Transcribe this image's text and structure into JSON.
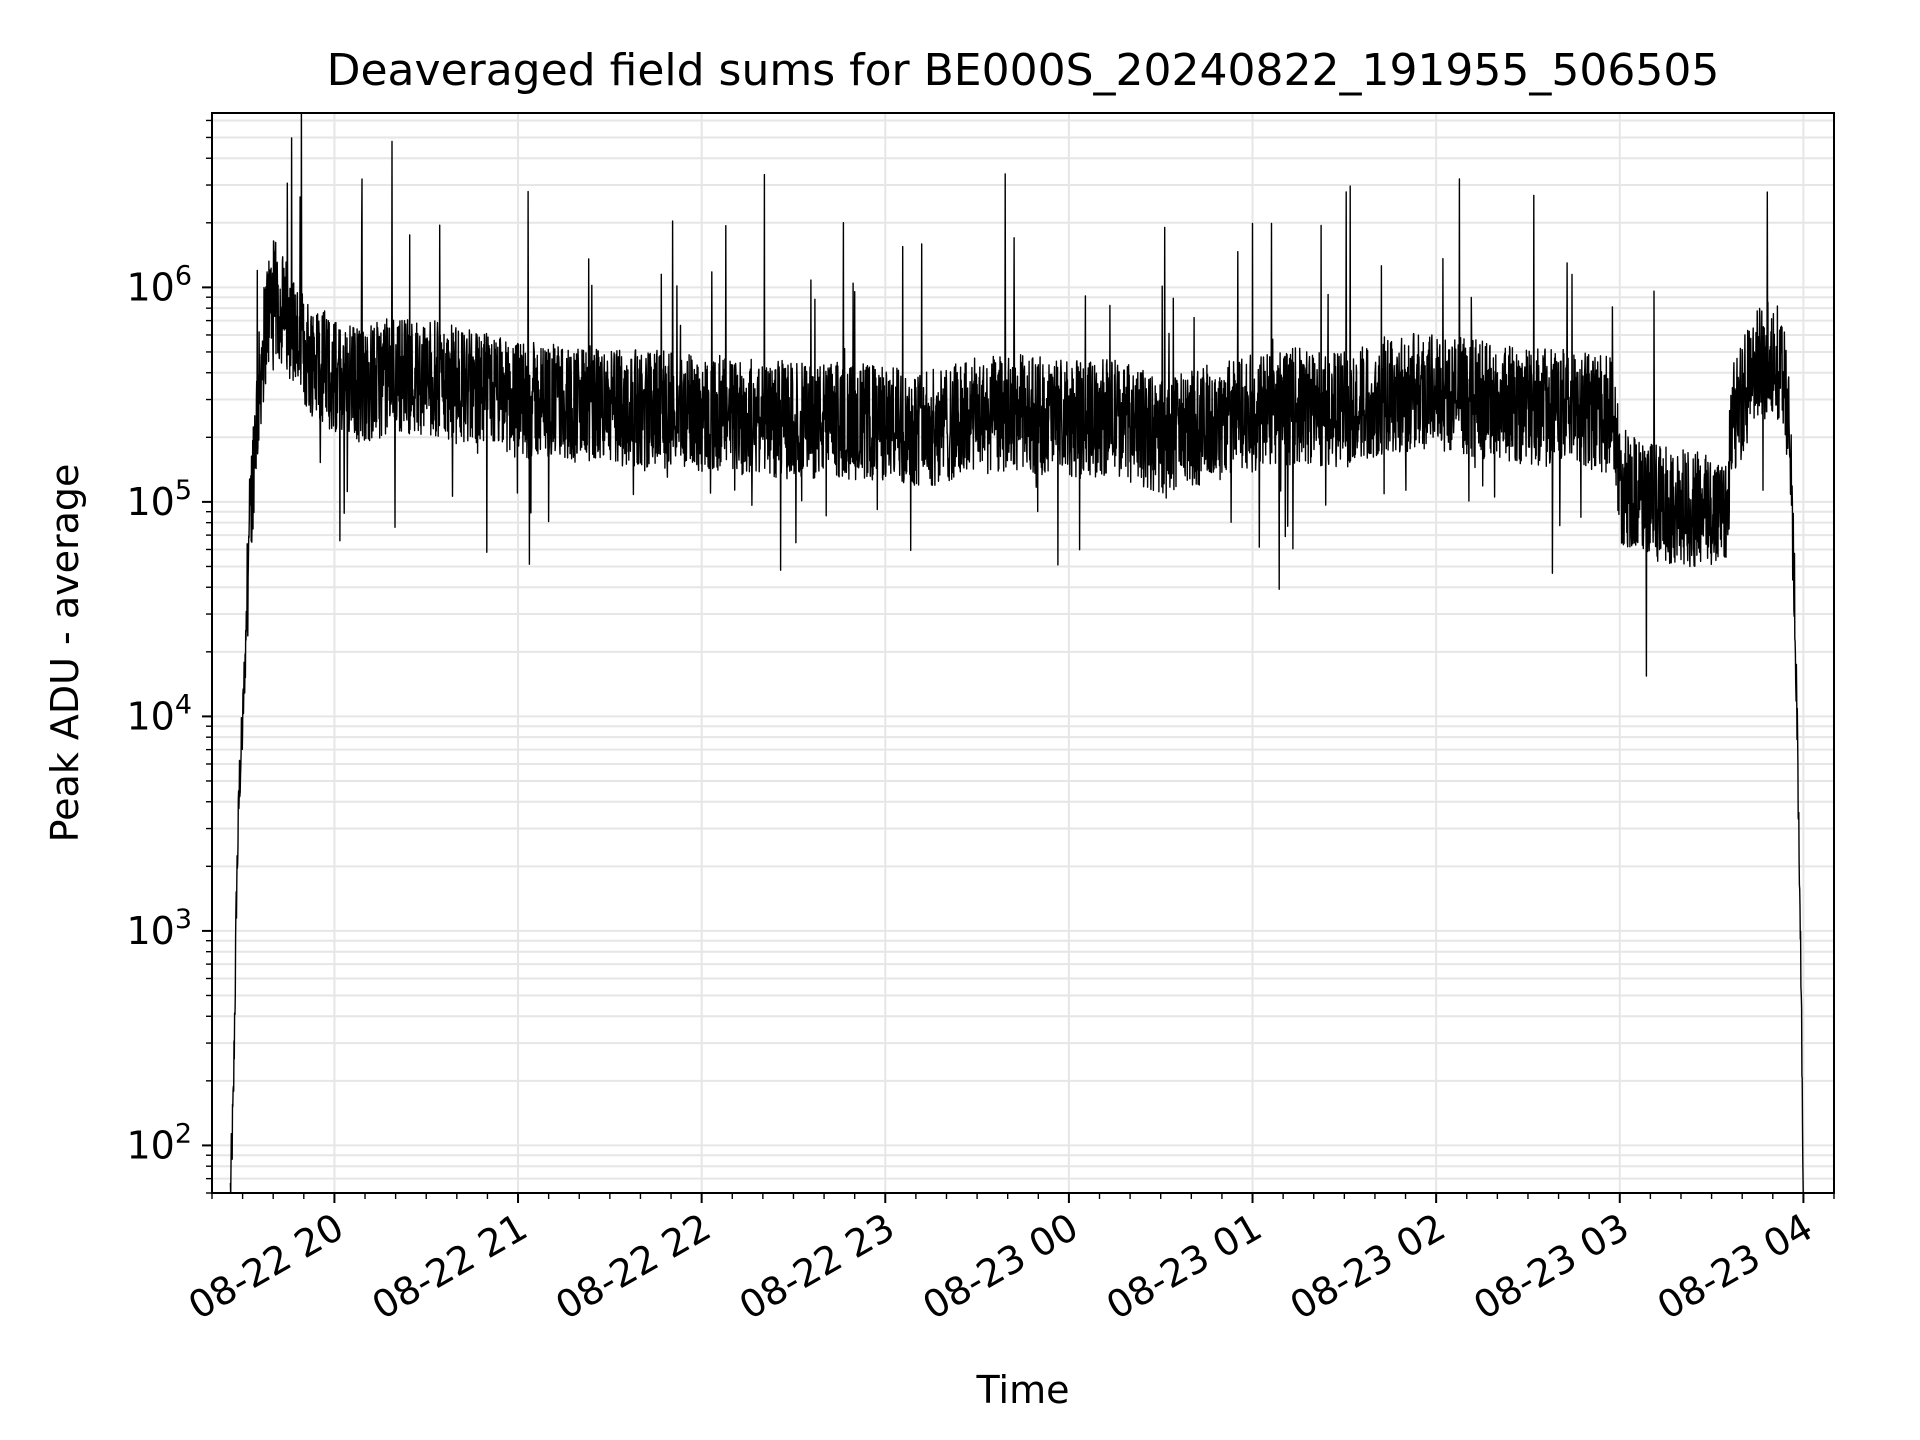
{
  "chart_data": {
    "type": "line",
    "title": "Deaveraged field sums for BE000S_20240822_191955_506505",
    "xlabel": "Time",
    "ylabel": "Peak ADU - average",
    "yscale": "log",
    "ylim": [
      60,
      6500000
    ],
    "xlim": [
      "2024-08-22 19:20",
      "2024-08-23 04:10"
    ],
    "grid": true,
    "x_ticks": [
      {
        "t": "2024-08-22 20:00",
        "label": "08-22 20"
      },
      {
        "t": "2024-08-22 21:00",
        "label": "08-22 21"
      },
      {
        "t": "2024-08-22 22:00",
        "label": "08-22 22"
      },
      {
        "t": "2024-08-22 23:00",
        "label": "08-22 23"
      },
      {
        "t": "2024-08-23 00:00",
        "label": "08-23 00"
      },
      {
        "t": "2024-08-23 01:00",
        "label": "08-23 01"
      },
      {
        "t": "2024-08-23 02:00",
        "label": "08-23 02"
      },
      {
        "t": "2024-08-23 03:00",
        "label": "08-23 03"
      },
      {
        "t": "2024-08-23 04:00",
        "label": "08-23 04"
      }
    ],
    "y_ticks": [
      {
        "value": 100,
        "base": "10",
        "exp": "2"
      },
      {
        "value": 1000,
        "base": "10",
        "exp": "3"
      },
      {
        "value": 10000,
        "base": "10",
        "exp": "4"
      },
      {
        "value": 100000,
        "base": "10",
        "exp": "5"
      },
      {
        "value": 1000000,
        "base": "10",
        "exp": "6"
      }
    ],
    "series": [
      {
        "color": "#000000",
        "points": [
          [
            "2024-08-22 19:26",
            60
          ],
          [
            "2024-08-22 19:27",
            160
          ],
          [
            "2024-08-22 19:28",
            1500
          ],
          [
            "2024-08-22 19:29",
            5000
          ],
          [
            "2024-08-22 19:30",
            9000
          ],
          [
            "2024-08-22 19:31",
            22000
          ],
          [
            "2024-08-22 19:32",
            60000
          ],
          [
            "2024-08-22 19:34",
            200000
          ],
          [
            "2024-08-22 19:36",
            420000
          ],
          [
            "2024-08-22 19:38",
            750000
          ],
          [
            "2024-08-22 19:40",
            900000
          ],
          [
            "2024-08-22 19:42",
            820000
          ],
          [
            "2024-08-22 19:45",
            700000
          ],
          [
            "2024-08-22 19:50",
            500000
          ],
          [
            "2024-08-22 19:55",
            450000
          ],
          [
            "2024-08-22 20:00",
            380000
          ],
          [
            "2024-08-22 20:10",
            350000
          ],
          [
            "2024-08-22 20:20",
            400000
          ],
          [
            "2024-08-22 20:30",
            380000
          ],
          [
            "2024-08-22 20:40",
            350000
          ],
          [
            "2024-08-22 20:50",
            330000
          ],
          [
            "2024-08-22 21:00",
            300000
          ],
          [
            "2024-08-22 21:15",
            290000
          ],
          [
            "2024-08-22 21:30",
            280000
          ],
          [
            "2024-08-22 21:45",
            270000
          ],
          [
            "2024-08-22 22:00",
            260000
          ],
          [
            "2024-08-22 22:15",
            250000
          ],
          [
            "2024-08-22 22:30",
            240000
          ],
          [
            "2024-08-22 22:45",
            240000
          ],
          [
            "2024-08-22 23:00",
            230000
          ],
          [
            "2024-08-22 23:15",
            220000
          ],
          [
            "2024-08-22 23:30",
            250000
          ],
          [
            "2024-08-22 23:45",
            260000
          ],
          [
            "2024-08-23 00:00",
            240000
          ],
          [
            "2024-08-23 00:15",
            250000
          ],
          [
            "2024-08-23 00:30",
            200000
          ],
          [
            "2024-08-23 00:45",
            230000
          ],
          [
            "2024-08-23 01:00",
            260000
          ],
          [
            "2024-08-23 01:15",
            280000
          ],
          [
            "2024-08-23 01:30",
            270000
          ],
          [
            "2024-08-23 01:45",
            320000
          ],
          [
            "2024-08-23 02:00",
            330000
          ],
          [
            "2024-08-23 02:15",
            300000
          ],
          [
            "2024-08-23 02:30",
            280000
          ],
          [
            "2024-08-23 02:45",
            270000
          ],
          [
            "2024-08-23 02:58",
            250000
          ],
          [
            "2024-08-23 03:00",
            120000
          ],
          [
            "2024-08-23 03:10",
            100000
          ],
          [
            "2024-08-23 03:20",
            95000
          ],
          [
            "2024-08-23 03:30",
            90000
          ],
          [
            "2024-08-23 03:35",
            100000
          ],
          [
            "2024-08-23 03:37",
            250000
          ],
          [
            "2024-08-23 03:40",
            300000
          ],
          [
            "2024-08-23 03:45",
            420000
          ],
          [
            "2024-08-23 03:50",
            500000
          ],
          [
            "2024-08-23 03:54",
            350000
          ],
          [
            "2024-08-23 03:56",
            150000
          ],
          [
            "2024-08-23 03:57",
            40000
          ],
          [
            "2024-08-23 03:58",
            8000
          ],
          [
            "2024-08-23 03:59",
            1200
          ],
          [
            "2024-08-23 04:00",
            60
          ]
        ]
      }
    ]
  }
}
